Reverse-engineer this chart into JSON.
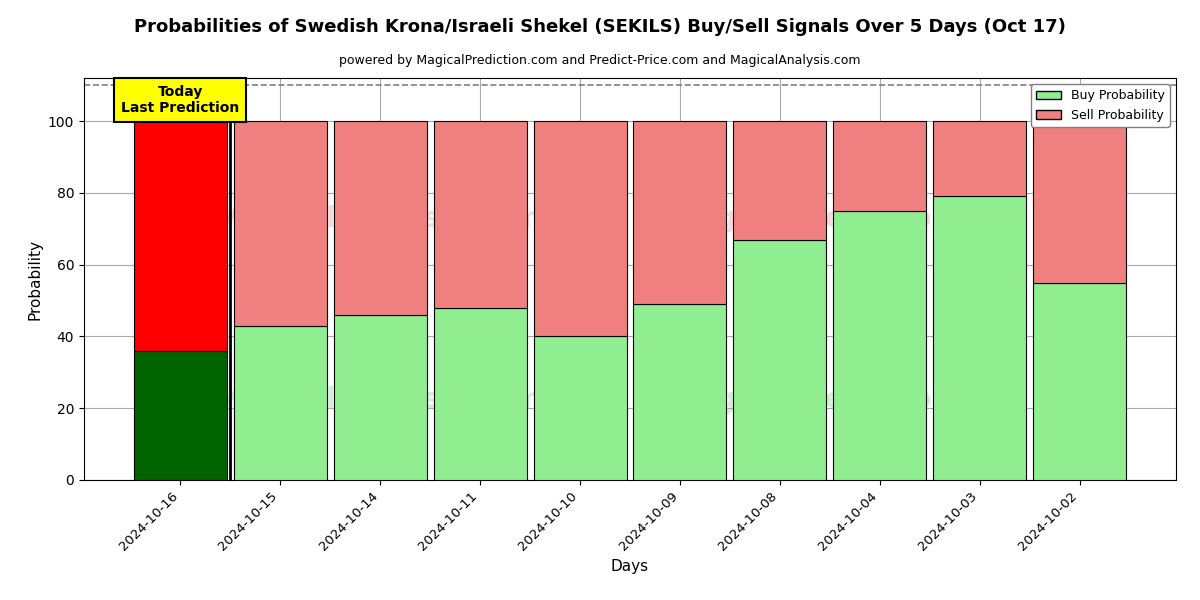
{
  "title": "Probabilities of Swedish Krona/Israeli Shekel (SEKILS) Buy/Sell Signals Over 5 Days (Oct 17)",
  "subtitle": "powered by MagicalPrediction.com and Predict-Price.com and MagicalAnalysis.com",
  "xlabel": "Days",
  "ylabel": "Probability",
  "categories": [
    "2024-10-16",
    "2024-10-15",
    "2024-10-14",
    "2024-10-11",
    "2024-10-10",
    "2024-10-09",
    "2024-10-08",
    "2024-10-04",
    "2024-10-03",
    "2024-10-02"
  ],
  "buy_values": [
    36,
    43,
    46,
    48,
    40,
    49,
    67,
    75,
    79,
    55
  ],
  "sell_values": [
    64,
    57,
    54,
    52,
    60,
    51,
    33,
    25,
    21,
    45
  ],
  "buy_color_today": "#006400",
  "sell_color_today": "#ff0000",
  "buy_color_rest": "#90EE90",
  "sell_color_rest": "#F08080",
  "bar_edge_color": "#000000",
  "ylim": [
    0,
    112
  ],
  "yticks": [
    0,
    20,
    40,
    60,
    80,
    100
  ],
  "dashed_line_y": 110,
  "watermark_text_left": "MagicalAnalysis.com",
  "watermark_text_right": "MagicalPrediction.com",
  "today_label": "Today\nLast Prediction",
  "today_box_color": "#FFFF00",
  "legend_buy_label": "Buy Probability",
  "legend_sell_label": "Sell Probability",
  "background_color": "#ffffff",
  "grid_color": "#aaaaaa",
  "bar_width": 0.93
}
